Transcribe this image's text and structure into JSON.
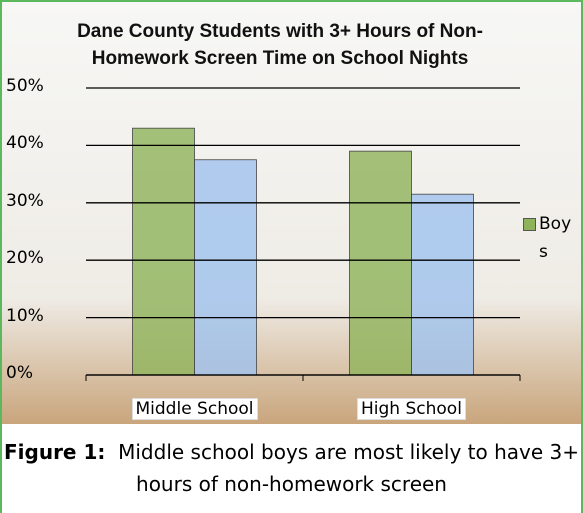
{
  "chart_data": {
    "type": "bar",
    "title": "Dane County Students with 3+ Hours of Non-Homework Screen Time on School Nights",
    "categories": [
      "Middle School",
      "High School"
    ],
    "series": [
      {
        "name": "Boys",
        "color": "#8fb35a",
        "values": [
          43,
          39
        ]
      },
      {
        "color": "#9fc2ee",
        "values": [
          37.5,
          31.5
        ]
      }
    ],
    "ylim": [
      0,
      50
    ],
    "yticks": [
      {
        "value": 0,
        "label": "0%"
      },
      {
        "value": 10,
        "label": "10%"
      },
      {
        "value": 20,
        "label": "20%"
      },
      {
        "value": 30,
        "label": "30%"
      },
      {
        "value": 40,
        "label": "40%"
      },
      {
        "value": 50,
        "label": "50%"
      }
    ],
    "grid": true,
    "legend": "right"
  },
  "caption": {
    "label": "Figure 1:",
    "text": "Middle school boys are most likely to have 3+ hours of non-homework screen"
  }
}
